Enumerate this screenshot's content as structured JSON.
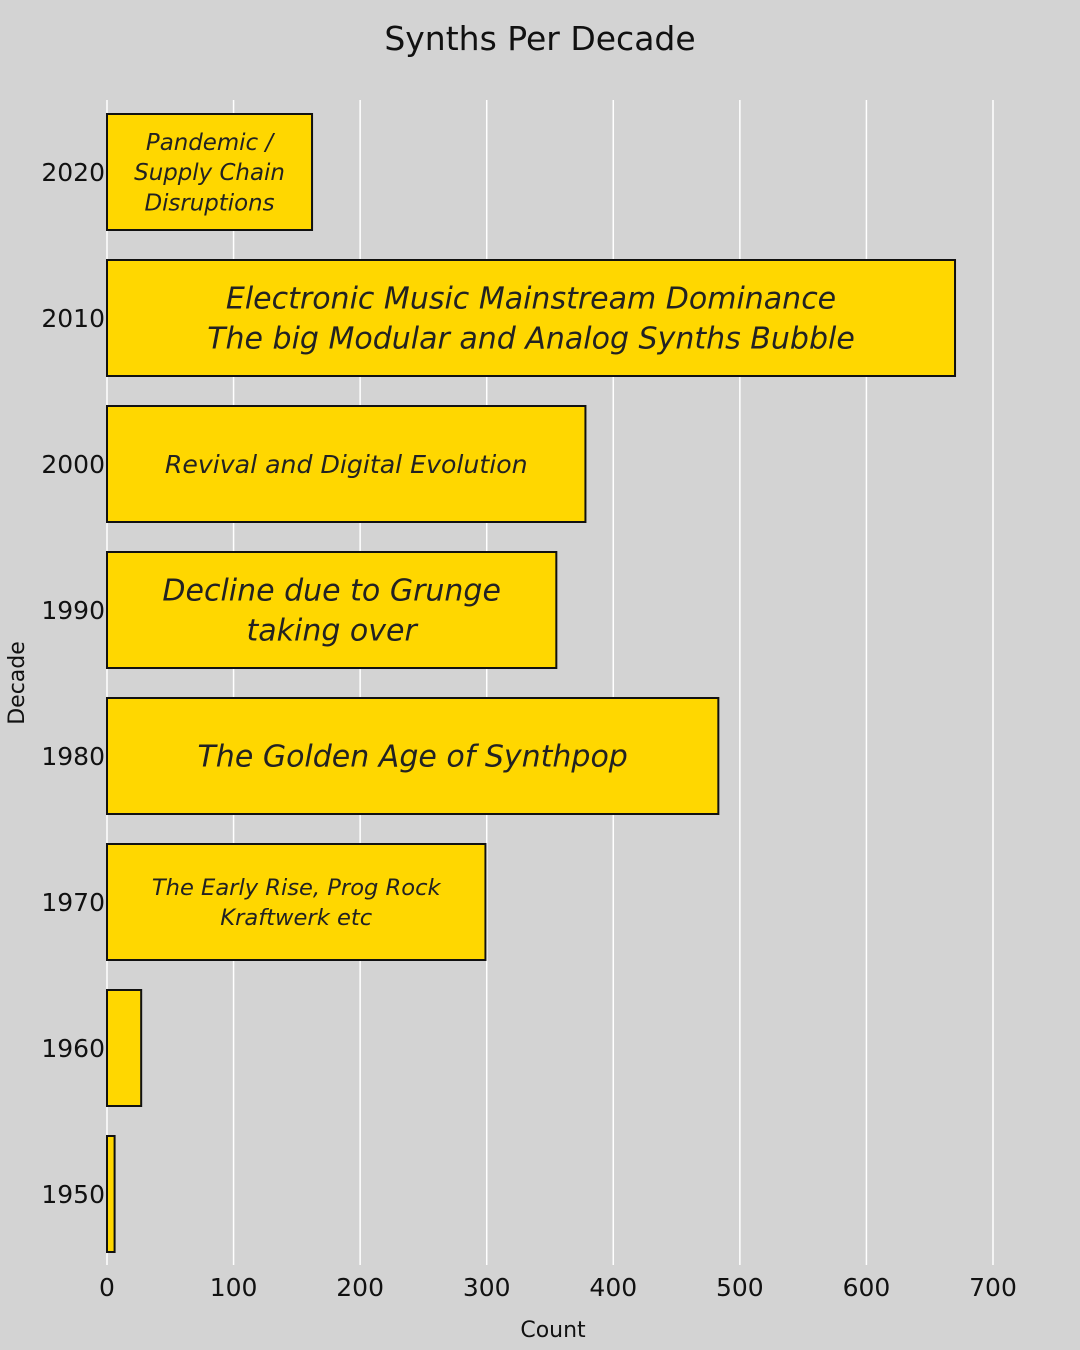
{
  "chart_data": {
    "type": "bar",
    "orientation": "horizontal",
    "title": "Synths Per Decade",
    "xlabel": "Count",
    "ylabel": "Decade",
    "xlim": [
      0,
      700
    ],
    "xticks": [
      "0",
      "100",
      "200",
      "300",
      "400",
      "500",
      "600",
      "700"
    ],
    "grid": "vertical",
    "legend": "none",
    "bar_color": "#ffd700",
    "categories": [
      "2020",
      "2010",
      "2000",
      "1990",
      "1980",
      "1970",
      "1960",
      "1950"
    ],
    "values": [
      162,
      670,
      378,
      355,
      483,
      299,
      27,
      6
    ],
    "annotations": [
      [
        "Pandemic /",
        "Supply Chain",
        "Disruptions"
      ],
      [
        "Electronic Music Mainstream Dominance",
        "The big Modular and Analog Synths Bubble"
      ],
      [
        "Revival and Digital Evolution"
      ],
      [
        "Decline due to Grunge",
        "taking over"
      ],
      [
        "The Golden Age of Synthpop"
      ],
      [
        "The Early Rise, Prog Rock",
        "Kraftwerk etc"
      ],
      [],
      []
    ]
  }
}
